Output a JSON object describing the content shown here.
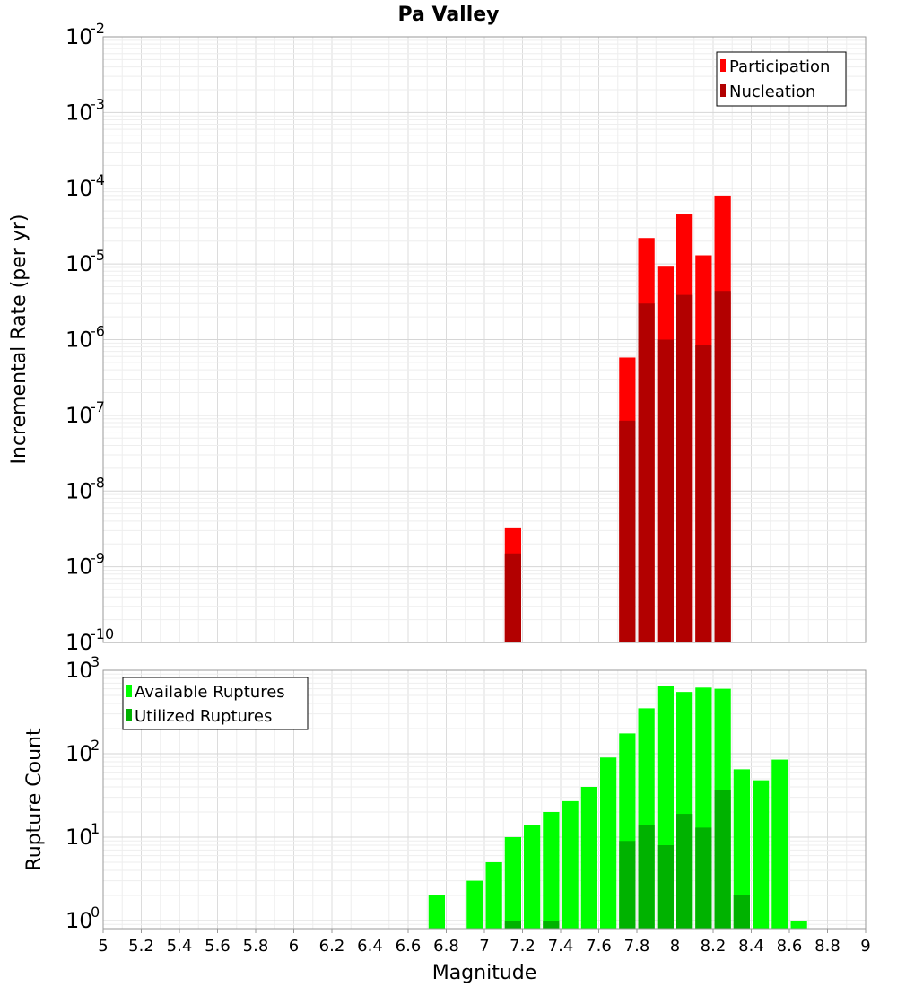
{
  "chart_data": [
    {
      "type": "bar",
      "title": "Pa Valley",
      "ylabel": "Incremental Rate (per yr)",
      "xlabel": "",
      "xlim": [
        5,
        9
      ],
      "ylim": [
        1e-10,
        0.01
      ],
      "yscale": "log",
      "bin_width": 0.1,
      "grid": true,
      "legend_position": "top-right",
      "y_tick_exponents": [
        "-10",
        "-9",
        "-8",
        "-7",
        "-6",
        "-5",
        "-4",
        "-3",
        "-2"
      ],
      "series": [
        {
          "name": "Participation",
          "color": "#ff0000",
          "x": [
            7.15,
            7.75,
            7.85,
            7.95,
            8.05,
            8.15,
            8.25
          ],
          "values": [
            3.3e-09,
            5.8e-07,
            2.2e-05,
            9.2e-06,
            4.5e-05,
            1.3e-05,
            8e-05
          ]
        },
        {
          "name": "Nucleation",
          "color": "#b20000",
          "x": [
            7.15,
            7.75,
            7.85,
            7.95,
            8.05,
            8.15,
            8.25
          ],
          "values": [
            1.5e-09,
            8.5e-08,
            3e-06,
            1e-06,
            3.9e-06,
            8.5e-07,
            4.4e-06
          ]
        }
      ]
    },
    {
      "type": "bar",
      "title": "",
      "ylabel": "Rupture Count",
      "xlabel": "Magnitude",
      "xlim": [
        5,
        9
      ],
      "ylim": [
        0.8,
        1000
      ],
      "yscale": "log",
      "bin_width": 0.1,
      "grid": true,
      "legend_position": "top-left",
      "y_tick_exponents": [
        "0",
        "1",
        "2",
        "3"
      ],
      "x_ticks": [
        "5",
        "5.2",
        "5.4",
        "5.6",
        "5.8",
        "6",
        "6.2",
        "6.4",
        "6.6",
        "6.8",
        "7",
        "7.2",
        "7.4",
        "7.6",
        "7.8",
        "8",
        "8.2",
        "8.4",
        "8.6",
        "8.8",
        "9"
      ],
      "series": [
        {
          "name": "Available Ruptures",
          "color": "#00ff00",
          "x": [
            6.75,
            6.95,
            7.05,
            7.15,
            7.25,
            7.35,
            7.45,
            7.55,
            7.65,
            7.75,
            7.85,
            7.95,
            8.05,
            8.15,
            8.25,
            8.35,
            8.45,
            8.55,
            8.65
          ],
          "values": [
            2,
            3,
            5,
            10,
            14,
            20,
            27,
            40,
            90,
            175,
            350,
            650,
            550,
            620,
            600,
            65,
            48,
            85,
            1
          ]
        },
        {
          "name": "Utilized Ruptures",
          "color": "#00b200",
          "x": [
            7.15,
            7.35,
            7.75,
            7.85,
            7.95,
            8.05,
            8.15,
            8.25,
            8.35
          ],
          "values": [
            1,
            1,
            9,
            14,
            8,
            19,
            13,
            37,
            2
          ]
        }
      ]
    }
  ]
}
